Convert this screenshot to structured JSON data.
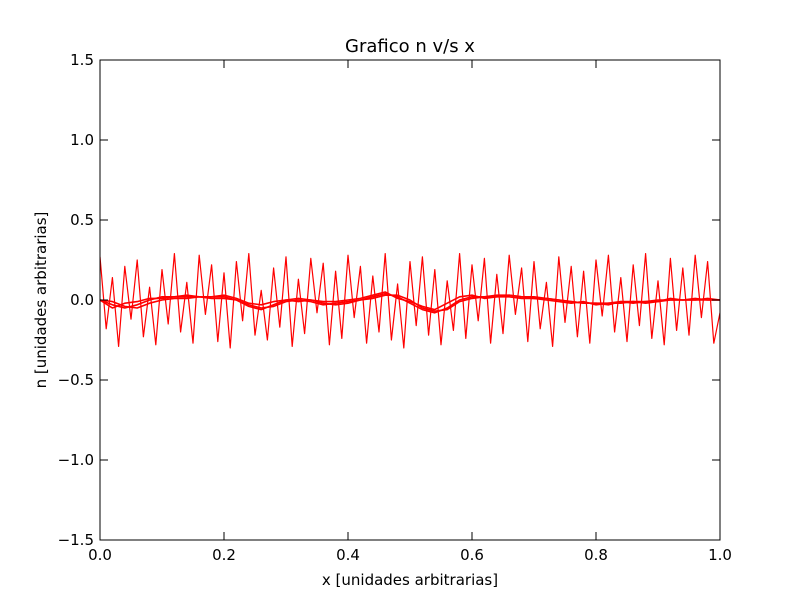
{
  "chart_data": {
    "type": "line",
    "title": "Grafico n v/s x",
    "xlabel": "x [unidades arbitrarias]",
    "ylabel": "n [unidades arbitrarias]",
    "xlim": [
      0.0,
      1.0
    ],
    "ylim": [
      -1.5,
      1.5
    ],
    "xticks": [
      0.0,
      0.2,
      0.4,
      0.6,
      0.8,
      1.0
    ],
    "xtick_labels": [
      "0.0",
      "0.2",
      "0.4",
      "0.6",
      "0.8",
      "1.0"
    ],
    "yticks": [
      -1.5,
      -1.0,
      -0.5,
      0.0,
      0.5,
      1.0,
      1.5
    ],
    "ytick_labels": [
      "−1.5",
      "−1.0",
      "−0.5",
      "0.0",
      "0.5",
      "1.0",
      "1.5"
    ],
    "grid": false,
    "line_color": "#ff0000",
    "series": [
      {
        "style": "noisy",
        "x": [
          0.0,
          0.01,
          0.02,
          0.03,
          0.04,
          0.05,
          0.06,
          0.07,
          0.08,
          0.09,
          0.1,
          0.11,
          0.12,
          0.13,
          0.14,
          0.15,
          0.16,
          0.17,
          0.18,
          0.19,
          0.2,
          0.21,
          0.22,
          0.23,
          0.24,
          0.25,
          0.26,
          0.27,
          0.28,
          0.29,
          0.3,
          0.31,
          0.32,
          0.33,
          0.34,
          0.35,
          0.36,
          0.37,
          0.38,
          0.39,
          0.4,
          0.41,
          0.42,
          0.43,
          0.44,
          0.45,
          0.46,
          0.47,
          0.48,
          0.49,
          0.5,
          0.51,
          0.52,
          0.53,
          0.54,
          0.55,
          0.56,
          0.57,
          0.58,
          0.59,
          0.6,
          0.61,
          0.62,
          0.63,
          0.64,
          0.65,
          0.66,
          0.67,
          0.68,
          0.69,
          0.7,
          0.71,
          0.72,
          0.73,
          0.74,
          0.75,
          0.76,
          0.77,
          0.78,
          0.79,
          0.8,
          0.81,
          0.82,
          0.83,
          0.84,
          0.85,
          0.86,
          0.87,
          0.88,
          0.89,
          0.9,
          0.91,
          0.92,
          0.93,
          0.94,
          0.95,
          0.96,
          0.97,
          0.98,
          0.99,
          1.0
        ],
        "y": [
          0.27,
          -0.18,
          0.14,
          -0.29,
          0.21,
          -0.12,
          0.25,
          -0.23,
          0.08,
          -0.28,
          0.19,
          -0.15,
          0.29,
          -0.2,
          0.11,
          -0.27,
          0.28,
          -0.09,
          0.22,
          -0.26,
          0.17,
          -0.3,
          0.24,
          -0.13,
          0.29,
          -0.22,
          0.06,
          -0.25,
          0.2,
          -0.17,
          0.27,
          -0.29,
          0.13,
          -0.21,
          0.26,
          -0.08,
          0.23,
          -0.28,
          0.18,
          -0.24,
          0.28,
          -0.11,
          0.21,
          -0.27,
          0.15,
          -0.2,
          0.29,
          -0.25,
          0.1,
          -0.3,
          0.24,
          -0.16,
          0.27,
          -0.22,
          0.19,
          -0.28,
          0.12,
          -0.19,
          0.29,
          -0.24,
          0.22,
          -0.13,
          0.26,
          -0.27,
          0.16,
          -0.21,
          0.28,
          -0.09,
          0.2,
          -0.26,
          0.24,
          -0.18,
          0.11,
          -0.29,
          0.27,
          -0.14,
          0.21,
          -0.23,
          0.18,
          -0.27,
          0.25,
          -0.1,
          0.28,
          -0.2,
          0.14,
          -0.26,
          0.22,
          -0.16,
          0.29,
          -0.24,
          0.12,
          -0.28,
          0.26,
          -0.19,
          0.2,
          -0.22,
          0.28,
          -0.11,
          0.24,
          -0.27,
          -0.08
        ]
      },
      {
        "style": "smooth",
        "x": [
          0.0,
          0.02,
          0.04,
          0.06,
          0.08,
          0.1,
          0.12,
          0.14,
          0.16,
          0.18,
          0.2,
          0.22,
          0.24,
          0.26,
          0.28,
          0.3,
          0.32,
          0.34,
          0.36,
          0.38,
          0.4,
          0.42,
          0.44,
          0.46,
          0.48,
          0.5,
          0.52,
          0.54,
          0.56,
          0.58,
          0.6,
          0.62,
          0.64,
          0.66,
          0.68,
          0.7,
          0.72,
          0.74,
          0.76,
          0.78,
          0.8,
          0.82,
          0.84,
          0.86,
          0.88,
          0.9,
          0.92,
          0.94,
          0.96,
          0.98,
          1.0
        ],
        "y": [
          0.0,
          -0.03,
          -0.05,
          -0.03,
          0.0,
          0.02,
          0.02,
          0.02,
          0.02,
          0.02,
          0.02,
          0.0,
          -0.04,
          -0.06,
          -0.03,
          0.0,
          0.01,
          0.0,
          -0.02,
          -0.03,
          -0.02,
          0.0,
          0.02,
          0.04,
          0.02,
          -0.02,
          -0.06,
          -0.08,
          -0.05,
          0.0,
          0.02,
          0.02,
          0.03,
          0.03,
          0.02,
          0.02,
          0.01,
          0.0,
          -0.01,
          -0.02,
          -0.02,
          -0.02,
          -0.01,
          -0.02,
          -0.01,
          0.0,
          0.0,
          0.0,
          0.01,
          0.0,
          0.0
        ]
      },
      {
        "style": "smooth",
        "x": [
          0.0,
          0.02,
          0.04,
          0.06,
          0.08,
          0.1,
          0.12,
          0.14,
          0.16,
          0.18,
          0.2,
          0.22,
          0.24,
          0.26,
          0.28,
          0.3,
          0.32,
          0.34,
          0.36,
          0.38,
          0.4,
          0.42,
          0.44,
          0.46,
          0.48,
          0.5,
          0.52,
          0.54,
          0.56,
          0.58,
          0.6,
          0.62,
          0.64,
          0.66,
          0.68,
          0.7,
          0.72,
          0.74,
          0.76,
          0.78,
          0.8,
          0.82,
          0.84,
          0.86,
          0.88,
          0.9,
          0.92,
          0.94,
          0.96,
          0.98,
          1.0
        ],
        "y": [
          0.0,
          -0.05,
          -0.02,
          -0.01,
          0.01,
          0.01,
          0.02,
          0.03,
          0.02,
          0.02,
          0.03,
          0.01,
          -0.02,
          -0.03,
          -0.01,
          0.0,
          -0.01,
          0.0,
          -0.01,
          -0.01,
          0.0,
          0.01,
          0.03,
          0.05,
          0.01,
          -0.01,
          -0.04,
          -0.06,
          -0.02,
          0.02,
          0.03,
          0.01,
          0.02,
          0.02,
          0.01,
          0.01,
          0.0,
          -0.01,
          -0.02,
          -0.01,
          -0.03,
          -0.02,
          -0.02,
          -0.01,
          -0.02,
          -0.01,
          0.01,
          0.0,
          0.0,
          0.01,
          0.0
        ]
      },
      {
        "style": "smooth",
        "x": [
          0.0,
          0.02,
          0.04,
          0.06,
          0.08,
          0.1,
          0.12,
          0.14,
          0.16,
          0.18,
          0.2,
          0.22,
          0.24,
          0.26,
          0.28,
          0.3,
          0.32,
          0.34,
          0.36,
          0.38,
          0.4,
          0.42,
          0.44,
          0.46,
          0.48,
          0.5,
          0.52,
          0.54,
          0.56,
          0.58,
          0.6,
          0.62,
          0.64,
          0.66,
          0.68,
          0.7,
          0.72,
          0.74,
          0.76,
          0.78,
          0.8,
          0.82,
          0.84,
          0.86,
          0.88,
          0.9,
          0.92,
          0.94,
          0.96,
          0.98,
          1.0
        ],
        "y": [
          0.0,
          -0.01,
          -0.04,
          -0.05,
          -0.02,
          0.0,
          0.01,
          0.01,
          0.02,
          0.01,
          0.01,
          0.0,
          -0.03,
          -0.05,
          -0.04,
          -0.01,
          0.0,
          -0.01,
          -0.03,
          -0.02,
          -0.01,
          0.0,
          0.01,
          0.03,
          0.03,
          0.0,
          -0.05,
          -0.07,
          -0.06,
          -0.01,
          0.01,
          0.02,
          0.02,
          0.03,
          0.02,
          0.01,
          0.01,
          0.0,
          -0.01,
          -0.02,
          -0.02,
          -0.03,
          -0.01,
          -0.01,
          -0.01,
          -0.01,
          0.0,
          0.0,
          0.0,
          0.0,
          0.0
        ]
      }
    ]
  }
}
